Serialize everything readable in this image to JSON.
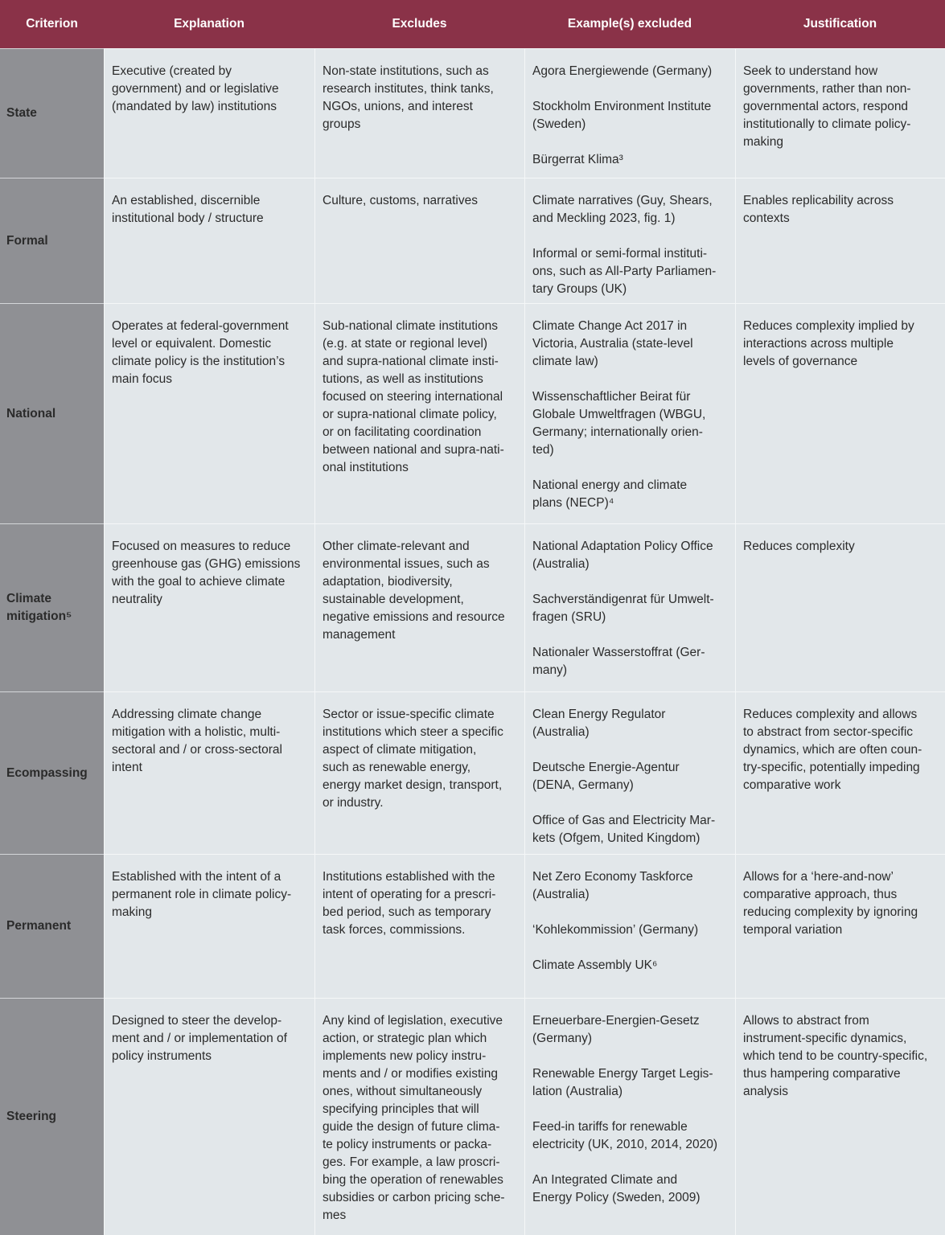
{
  "header": [
    "Criterion",
    "Explanation",
    "Excludes",
    "Example(s) excluded",
    "Justification"
  ],
  "rows": [
    {
      "criterion": "State",
      "explanation": "Executive (created by\ngovernment) and or legislative\n(mandated by law) institutions",
      "excludes": "Non-state institutions, such as\nresearch institutes, think tanks,\nNGOs, unions, and interest\ngroups",
      "examples": "Agora Energiewende (Germany)\n\nStockholm Environment Institute\n(Sweden)\n\nBürgerrat Klima³",
      "justification": "Seek to understand how\ngovernments, rather than non-\ngovernmental actors, respond\ninstitutionally to climate policy-\nmaking"
    },
    {
      "criterion": "Formal",
      "explanation": "An established, discernible\ninstitutional body / structure",
      "excludes": "Culture, customs, narratives",
      "examples": "Climate narratives (Guy, Shears,\nand Meckling 2023, fig. 1)\n\nInformal or semi-formal instituti-\nons, such as All-Party Parliamen-\ntary Groups (UK)",
      "justification": "Enables replicability across\ncontexts"
    },
    {
      "criterion": "National",
      "explanation": "Operates at federal-government\nlevel or equivalent. Domestic\nclimate policy is the institution’s\nmain focus",
      "excludes": "Sub-national climate institutions\n(e.g. at state or regional level)\nand supra-national climate insti-\ntutions, as well as institutions\nfocused on steering international\nor supra-national climate policy,\nor on facilitating coordination\nbetween national and supra-nati-\nonal institutions",
      "examples": "Climate Change Act 2017 in\nVictoria, Australia (state-level\nclimate law)\n\nWissenschaftlicher Beirat für\nGlobale Umweltfragen (WBGU,\nGermany; internationally orien-\nted)\n\nNational energy and climate\nplans (NECP)⁴",
      "justification": "Reduces complexity implied by\ninteractions across multiple\nlevels of governance"
    },
    {
      "criterion": "Climate\nmitigation⁵",
      "explanation": "Focused on measures to reduce\ngreenhouse gas (GHG) emissions\nwith the goal to achieve climate\nneutrality",
      "excludes": "Other climate-relevant and\nenvironmental issues, such as\nadaptation, biodiversity,\nsustainable development,\nnegative emissions and resource\nmanagement",
      "examples": "National Adaptation Policy Office\n(Australia)\n\nSachverständigenrat für Umwelt-\nfragen (SRU)\n\nNationaler Wasserstoffrat (Ger-\nmany)",
      "justification": "Reduces complexity"
    },
    {
      "criterion": "Ecompassing",
      "explanation": "Addressing climate change\nmitigation with a holistic, multi-\nsectoral and / or cross-sectoral\nintent",
      "excludes": "Sector or issue-specific climate\ninstitutions which steer a specific\naspect of climate mitigation,\nsuch as renewable energy,\nenergy market design, transport,\nor industry.",
      "examples": "Clean Energy Regulator\n(Australia)\n\nDeutsche Energie-Agentur\n(DENA, Germany)\n\nOffice of Gas and Electricity Mar-\nkets (Ofgem, United Kingdom)",
      "justification": "Reduces complexity and allows\nto abstract from sector-specific\ndynamics, which are often coun-\ntry-specific, potentially impeding\ncomparative work"
    },
    {
      "criterion": "Permanent",
      "explanation": "Established with the intent of a\npermanent role in climate policy-\nmaking",
      "excludes": "Institutions established with the\nintent of operating for a prescri-\nbed period, such as temporary\ntask forces, commissions.",
      "examples": "Net Zero Economy Taskforce\n(Australia)\n\n‘Kohlekommission’ (Germany)\n\nClimate Assembly UK⁶",
      "justification": "Allows for a ‘here-and-now’\ncomparative approach, thus\nreducing complexity by ignoring\ntemporal variation"
    },
    {
      "criterion": "Steering",
      "explanation": "Designed to steer the develop-\nment and / or implementation of\npolicy instruments",
      "excludes": "Any kind of legislation, executive\naction, or strategic plan which\nimplements new policy instru-\nments and / or modifies existing\nones, without simultaneously\nspecifying principles that will\nguide the design of future clima-\nte policy instruments or packa-\nges. For example, a law proscri-\nbing the operation of renewables\nsubsidies or carbon pricing sche-\nmes",
      "examples": "Erneuerbare-Energien-Gesetz\n(Germany)\n\nRenewable Energy Target Legis-\nlation (Australia)\n\nFeed-in tariffs for renewable\nelectricity (UK, 2010, 2014, 2020)\n\nAn Integrated Climate and\nEnergy Policy (Sweden, 2009)",
      "justification": "Allows to abstract from\ninstrument-specific dynamics,\nwhich tend to be country-specific,\nthus hampering comparative\nanalysis"
    }
  ]
}
